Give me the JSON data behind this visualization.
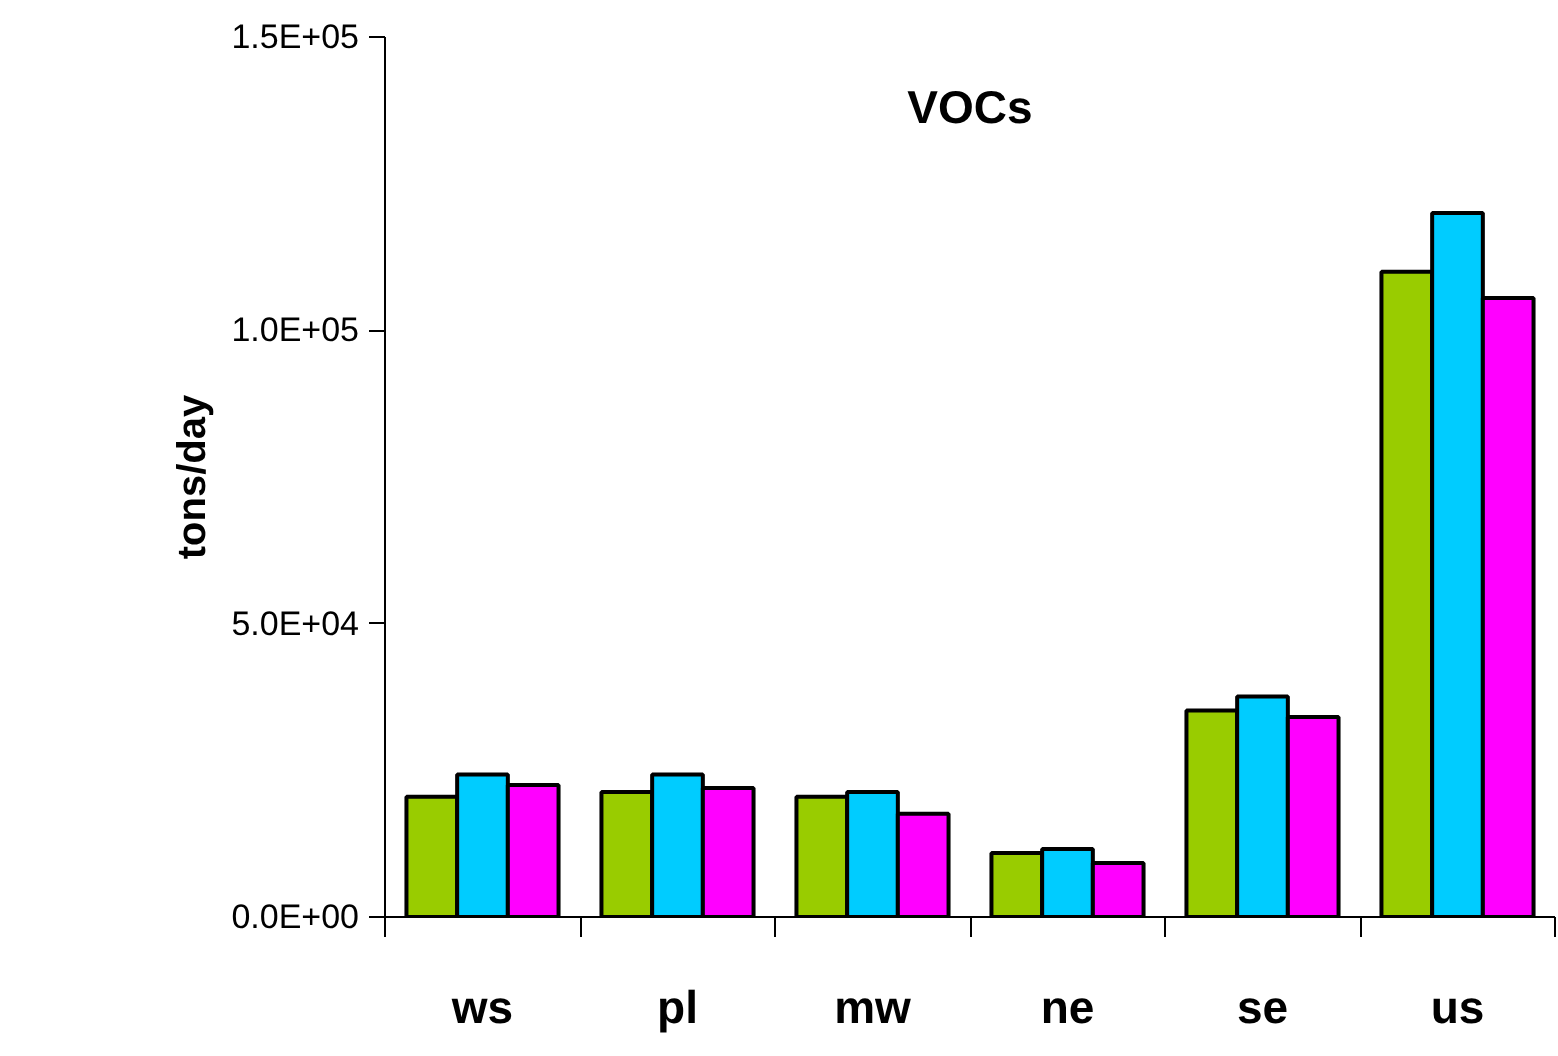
{
  "chart_data": {
    "type": "bar",
    "title": "VOCs",
    "ylabel": "tons/day",
    "categories": [
      "ws",
      "pl",
      "mw",
      "ne",
      "se",
      "us"
    ],
    "series": [
      {
        "color": "#99cc00",
        "values": [
          20500,
          21300,
          20500,
          10900,
          35200,
          110000
        ]
      },
      {
        "color": "#00ccff",
        "values": [
          24300,
          24300,
          21300,
          11600,
          37600,
          120000
        ]
      },
      {
        "color": "#ff00ff",
        "values": [
          22500,
          22000,
          17600,
          9200,
          34100,
          105500
        ]
      }
    ],
    "ylim": [
      0,
      150000
    ],
    "yticks": [
      {
        "value": 0,
        "label": "0.0E+00"
      },
      {
        "value": 50000,
        "label": "5.0E+04"
      },
      {
        "value": 100000,
        "label": "1.0E+05"
      },
      {
        "value": 150000,
        "label": "1.5E+05"
      }
    ],
    "grid": false
  }
}
